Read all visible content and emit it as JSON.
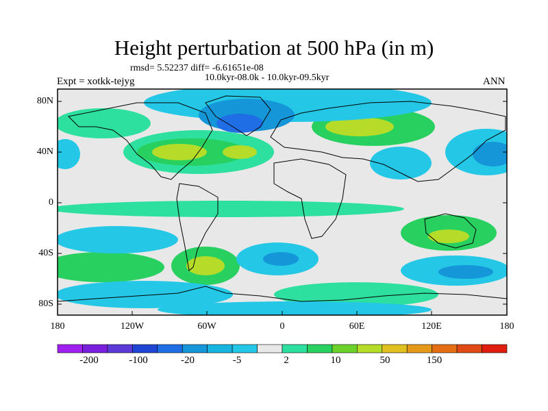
{
  "header": {
    "title": "Height perturbation at 500 hPa (in m)",
    "stats": "rmsd= 5.52237 diff= -6.61651e-08",
    "period": "10.0kyr-08.0k - 10.0kyr-09.5kyr",
    "experiment": "Expt = xotkk-tejyg",
    "season": "ANN"
  },
  "axes": {
    "lat_labels": [
      "80N",
      "40N",
      "0",
      "40S",
      "80S"
    ],
    "lon_labels": [
      "180",
      "120W",
      "60W",
      "0",
      "60E",
      "120E",
      "180"
    ]
  },
  "colorbar": {
    "labels": [
      "-200",
      "-100",
      "-20",
      "-5",
      "2",
      "10",
      "50",
      "150"
    ],
    "colors": [
      "#a020f0",
      "#7a1fdc",
      "#5b3ad6",
      "#1f46d2",
      "#1f6ee6",
      "#1496d8",
      "#18b4e0",
      "#24c8e6",
      "#e8e8e8",
      "#2ee0a0",
      "#28d060",
      "#6cd02a",
      "#b4dc28",
      "#e0c020",
      "#e49a18",
      "#e46e14",
      "#e04a14",
      "#e01e10"
    ]
  },
  "map_colors": {
    "background": "#e8e8e8",
    "coast": "#000000"
  }
}
